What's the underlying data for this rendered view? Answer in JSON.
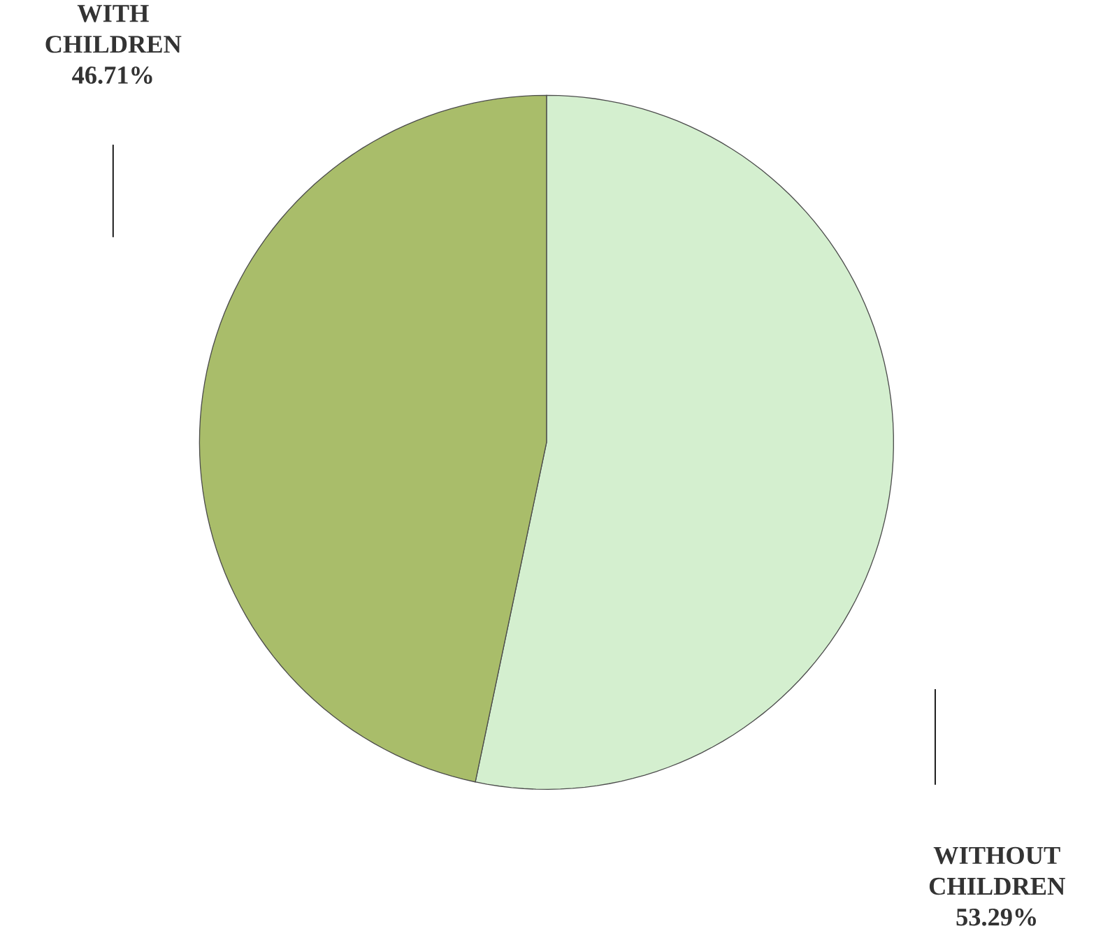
{
  "chart_data": {
    "type": "pie",
    "categories": [
      "WITH CHILDREN",
      "WITHOUT CHILDREN"
    ],
    "values": [
      46.71,
      53.29
    ],
    "value_labels": [
      "46.71%",
      "53.29%"
    ],
    "colors": [
      "#a9bd6a",
      "#d4efcf"
    ]
  }
}
